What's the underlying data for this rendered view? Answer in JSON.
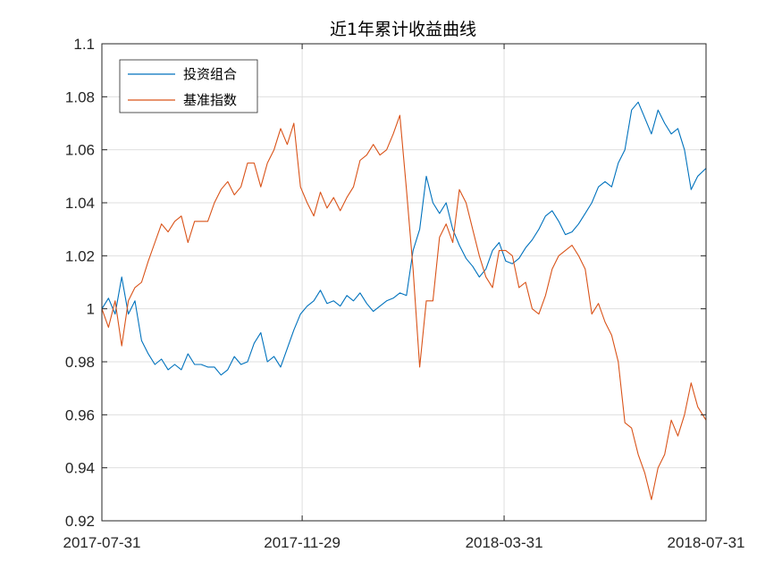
{
  "chart_data": {
    "type": "line",
    "title": "近1年累计收益曲线",
    "xlabel": "",
    "ylabel": "",
    "x_ticks": [
      "2017-07-31",
      "2017-11-29",
      "2018-03-31",
      "2018-07-31"
    ],
    "x_range": [
      "2017-07-31",
      "2018-07-31"
    ],
    "ylim": [
      0.92,
      1.1
    ],
    "y_ticks": [
      "0.92",
      "0.94",
      "0.96",
      "0.98",
      "1",
      "1.02",
      "1.04",
      "1.06",
      "1.08",
      "1.1"
    ],
    "grid": true,
    "legend_position": "top-left",
    "series": [
      {
        "name": "投资组合",
        "color": "#0072BD",
        "points": [
          [
            "2017-07-31",
            1.0
          ],
          [
            "2017-08-04",
            1.004
          ],
          [
            "2017-08-08",
            0.998
          ],
          [
            "2017-08-12",
            1.012
          ],
          [
            "2017-08-16",
            0.998
          ],
          [
            "2017-08-20",
            1.003
          ],
          [
            "2017-08-24",
            0.988
          ],
          [
            "2017-08-28",
            0.983
          ],
          [
            "2017-09-01",
            0.979
          ],
          [
            "2017-09-05",
            0.981
          ],
          [
            "2017-09-09",
            0.977
          ],
          [
            "2017-09-13",
            0.979
          ],
          [
            "2017-09-17",
            0.977
          ],
          [
            "2017-09-21",
            0.983
          ],
          [
            "2017-09-25",
            0.979
          ],
          [
            "2017-09-29",
            0.979
          ],
          [
            "2017-10-03",
            0.978
          ],
          [
            "2017-10-07",
            0.978
          ],
          [
            "2017-10-11",
            0.975
          ],
          [
            "2017-10-15",
            0.977
          ],
          [
            "2017-10-19",
            0.982
          ],
          [
            "2017-10-23",
            0.979
          ],
          [
            "2017-10-27",
            0.98
          ],
          [
            "2017-10-31",
            0.987
          ],
          [
            "2017-11-04",
            0.991
          ],
          [
            "2017-11-08",
            0.98
          ],
          [
            "2017-11-12",
            0.982
          ],
          [
            "2017-11-16",
            0.978
          ],
          [
            "2017-11-20",
            0.985
          ],
          [
            "2017-11-24",
            0.992
          ],
          [
            "2017-11-28",
            0.998
          ],
          [
            "2017-12-02",
            1.001
          ],
          [
            "2017-12-06",
            1.003
          ],
          [
            "2017-12-10",
            1.007
          ],
          [
            "2017-12-14",
            1.002
          ],
          [
            "2017-12-18",
            1.003
          ],
          [
            "2017-12-22",
            1.001
          ],
          [
            "2017-12-26",
            1.005
          ],
          [
            "2017-12-30",
            1.003
          ],
          [
            "2018-01-03",
            1.006
          ],
          [
            "2018-01-07",
            1.002
          ],
          [
            "2018-01-11",
            0.999
          ],
          [
            "2018-01-15",
            1.001
          ],
          [
            "2018-01-19",
            1.003
          ],
          [
            "2018-01-23",
            1.004
          ],
          [
            "2018-01-27",
            1.006
          ],
          [
            "2018-01-31",
            1.005
          ],
          [
            "2018-02-04",
            1.022
          ],
          [
            "2018-02-08",
            1.03
          ],
          [
            "2018-02-12",
            1.05
          ],
          [
            "2018-02-16",
            1.04
          ],
          [
            "2018-02-20",
            1.036
          ],
          [
            "2018-02-24",
            1.04
          ],
          [
            "2018-02-28",
            1.03
          ],
          [
            "2018-03-04",
            1.024
          ],
          [
            "2018-03-08",
            1.019
          ],
          [
            "2018-03-12",
            1.016
          ],
          [
            "2018-03-16",
            1.012
          ],
          [
            "2018-03-20",
            1.015
          ],
          [
            "2018-03-24",
            1.022
          ],
          [
            "2018-03-28",
            1.025
          ],
          [
            "2018-04-01",
            1.018
          ],
          [
            "2018-04-05",
            1.017
          ],
          [
            "2018-04-09",
            1.019
          ],
          [
            "2018-04-13",
            1.023
          ],
          [
            "2018-04-17",
            1.026
          ],
          [
            "2018-04-21",
            1.03
          ],
          [
            "2018-04-25",
            1.035
          ],
          [
            "2018-04-29",
            1.037
          ],
          [
            "2018-05-03",
            1.033
          ],
          [
            "2018-05-07",
            1.028
          ],
          [
            "2018-05-11",
            1.029
          ],
          [
            "2018-05-15",
            1.032
          ],
          [
            "2018-05-19",
            1.036
          ],
          [
            "2018-05-23",
            1.04
          ],
          [
            "2018-05-27",
            1.046
          ],
          [
            "2018-05-31",
            1.048
          ],
          [
            "2018-06-04",
            1.046
          ],
          [
            "2018-06-08",
            1.055
          ],
          [
            "2018-06-12",
            1.06
          ],
          [
            "2018-06-16",
            1.075
          ],
          [
            "2018-06-20",
            1.078
          ],
          [
            "2018-06-24",
            1.072
          ],
          [
            "2018-06-28",
            1.066
          ],
          [
            "2018-07-02",
            1.075
          ],
          [
            "2018-07-06",
            1.07
          ],
          [
            "2018-07-10",
            1.066
          ],
          [
            "2018-07-14",
            1.068
          ],
          [
            "2018-07-18",
            1.06
          ],
          [
            "2018-07-22",
            1.045
          ],
          [
            "2018-07-26",
            1.05
          ],
          [
            "2018-07-31",
            1.053
          ]
        ]
      },
      {
        "name": "基准指数",
        "color": "#D95319",
        "points": [
          [
            "2017-07-31",
            1.0
          ],
          [
            "2017-08-04",
            0.993
          ],
          [
            "2017-08-08",
            1.003
          ],
          [
            "2017-08-12",
            0.986
          ],
          [
            "2017-08-16",
            1.003
          ],
          [
            "2017-08-20",
            1.008
          ],
          [
            "2017-08-24",
            1.01
          ],
          [
            "2017-08-28",
            1.018
          ],
          [
            "2017-09-01",
            1.025
          ],
          [
            "2017-09-05",
            1.032
          ],
          [
            "2017-09-09",
            1.029
          ],
          [
            "2017-09-13",
            1.033
          ],
          [
            "2017-09-17",
            1.035
          ],
          [
            "2017-09-21",
            1.025
          ],
          [
            "2017-09-25",
            1.033
          ],
          [
            "2017-09-29",
            1.033
          ],
          [
            "2017-10-03",
            1.033
          ],
          [
            "2017-10-07",
            1.04
          ],
          [
            "2017-10-11",
            1.045
          ],
          [
            "2017-10-15",
            1.048
          ],
          [
            "2017-10-19",
            1.043
          ],
          [
            "2017-10-23",
            1.046
          ],
          [
            "2017-10-27",
            1.055
          ],
          [
            "2017-10-31",
            1.055
          ],
          [
            "2017-11-04",
            1.046
          ],
          [
            "2017-11-08",
            1.055
          ],
          [
            "2017-11-12",
            1.06
          ],
          [
            "2017-11-16",
            1.068
          ],
          [
            "2017-11-20",
            1.062
          ],
          [
            "2017-11-24",
            1.07
          ],
          [
            "2017-11-28",
            1.046
          ],
          [
            "2017-12-02",
            1.04
          ],
          [
            "2017-12-06",
            1.035
          ],
          [
            "2017-12-10",
            1.044
          ],
          [
            "2017-12-14",
            1.038
          ],
          [
            "2017-12-18",
            1.042
          ],
          [
            "2017-12-22",
            1.037
          ],
          [
            "2017-12-26",
            1.042
          ],
          [
            "2017-12-30",
            1.046
          ],
          [
            "2018-01-03",
            1.056
          ],
          [
            "2018-01-07",
            1.058
          ],
          [
            "2018-01-11",
            1.062
          ],
          [
            "2018-01-15",
            1.058
          ],
          [
            "2018-01-19",
            1.06
          ],
          [
            "2018-01-23",
            1.066
          ],
          [
            "2018-01-27",
            1.073
          ],
          [
            "2018-01-31",
            1.045
          ],
          [
            "2018-02-04",
            1.015
          ],
          [
            "2018-02-08",
            0.978
          ],
          [
            "2018-02-12",
            1.003
          ],
          [
            "2018-02-16",
            1.003
          ],
          [
            "2018-02-20",
            1.027
          ],
          [
            "2018-02-24",
            1.032
          ],
          [
            "2018-02-28",
            1.025
          ],
          [
            "2018-03-04",
            1.045
          ],
          [
            "2018-03-08",
            1.04
          ],
          [
            "2018-03-12",
            1.03
          ],
          [
            "2018-03-16",
            1.02
          ],
          [
            "2018-03-20",
            1.012
          ],
          [
            "2018-03-24",
            1.008
          ],
          [
            "2018-03-28",
            1.022
          ],
          [
            "2018-04-01",
            1.022
          ],
          [
            "2018-04-05",
            1.02
          ],
          [
            "2018-04-09",
            1.008
          ],
          [
            "2018-04-13",
            1.01
          ],
          [
            "2018-04-17",
            1.0
          ],
          [
            "2018-04-21",
            0.998
          ],
          [
            "2018-04-25",
            1.005
          ],
          [
            "2018-04-29",
            1.015
          ],
          [
            "2018-05-03",
            1.02
          ],
          [
            "2018-05-07",
            1.022
          ],
          [
            "2018-05-11",
            1.024
          ],
          [
            "2018-05-15",
            1.02
          ],
          [
            "2018-05-19",
            1.015
          ],
          [
            "2018-05-23",
            0.998
          ],
          [
            "2018-05-27",
            1.002
          ],
          [
            "2018-05-31",
            0.995
          ],
          [
            "2018-06-04",
            0.99
          ],
          [
            "2018-06-08",
            0.98
          ],
          [
            "2018-06-12",
            0.957
          ],
          [
            "2018-06-16",
            0.955
          ],
          [
            "2018-06-20",
            0.945
          ],
          [
            "2018-06-24",
            0.938
          ],
          [
            "2018-06-28",
            0.928
          ],
          [
            "2018-07-02",
            0.94
          ],
          [
            "2018-07-06",
            0.945
          ],
          [
            "2018-07-10",
            0.958
          ],
          [
            "2018-07-14",
            0.952
          ],
          [
            "2018-07-18",
            0.96
          ],
          [
            "2018-07-22",
            0.972
          ],
          [
            "2018-07-26",
            0.963
          ],
          [
            "2018-07-31",
            0.958
          ]
        ]
      }
    ]
  }
}
